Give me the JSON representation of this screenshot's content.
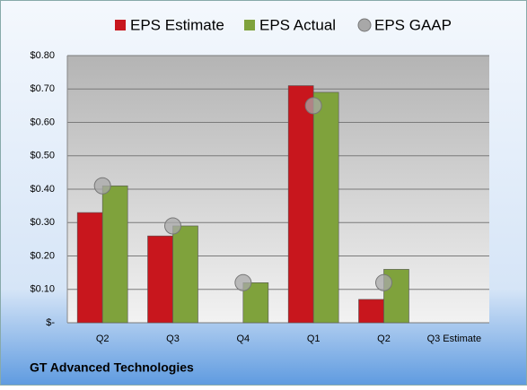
{
  "chart_data": {
    "type": "bar",
    "categories": [
      "Q2",
      "Q3",
      "Q4",
      "Q1",
      "Q2",
      "Q3 Estimate"
    ],
    "series": [
      {
        "name": "EPS Estimate",
        "color": "#c8161d",
        "type": "bar",
        "values": [
          0.33,
          0.26,
          null,
          0.71,
          0.07,
          null
        ]
      },
      {
        "name": "EPS Actual",
        "color": "#7fa23c",
        "type": "bar",
        "values": [
          0.41,
          0.29,
          0.12,
          0.69,
          0.16,
          null
        ]
      },
      {
        "name": "EPS GAAP",
        "color": "#a8a8a8",
        "type": "scatter",
        "values": [
          0.41,
          0.29,
          0.12,
          0.65,
          0.12,
          null
        ]
      }
    ],
    "ylim": [
      0,
      0.8
    ],
    "yticks": [
      {
        "value": 0,
        "label": "$-"
      },
      {
        "value": 0.1,
        "label": "$0.10"
      },
      {
        "value": 0.2,
        "label": "$0.20"
      },
      {
        "value": 0.3,
        "label": "$0.30"
      },
      {
        "value": 0.4,
        "label": "$0.40"
      },
      {
        "value": 0.5,
        "label": "$0.50"
      },
      {
        "value": 0.6,
        "label": "$0.60"
      },
      {
        "value": 0.7,
        "label": "$0.70"
      },
      {
        "value": 0.8,
        "label": "$0.80"
      }
    ],
    "grid": true,
    "legend": "top",
    "footer": "GT Advanced Technologies"
  }
}
